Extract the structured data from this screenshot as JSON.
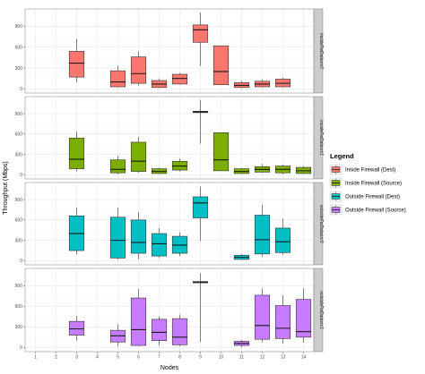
{
  "chart_data": {
    "type": "box",
    "xlabel": "Nodes",
    "ylabel": "Throughput (Mbps)",
    "x_categories": [
      "1",
      "2",
      "3",
      "4",
      "5",
      "6",
      "7",
      "8",
      "9",
      "10",
      "11",
      "12",
      "13",
      "14"
    ],
    "y_ticks": [
      0,
      300,
      600,
      900
    ],
    "ylim": [
      -60,
      1150
    ],
    "grid": true,
    "legend": {
      "title": "Legend",
      "position": "right",
      "entries": [
        {
          "label": "Inside Firewall (Dest)",
          "color": "#F8766D"
        },
        {
          "label": "Inside Firewall (Source)",
          "color": "#7CAE00"
        },
        {
          "label": "Outside Firewall (Dest)",
          "color": "#00BFC4"
        },
        {
          "label": "Outside Firewall (Source)",
          "color": "#C77CFF"
        }
      ]
    },
    "panels": [
      {
        "series": "Inside Firewall (Dest)",
        "strip_label": "insideFwDatasrc0",
        "color": "#F8766D",
        "boxes": [
          {
            "x": 3,
            "min": 90,
            "q1": 170,
            "median": 370,
            "q3": 540,
            "max": 720
          },
          {
            "x": 5,
            "min": 20,
            "q1": 30,
            "median": 100,
            "q3": 260,
            "max": 330
          },
          {
            "x": 6,
            "min": 50,
            "q1": 80,
            "median": 220,
            "q3": 460,
            "max": 540
          },
          {
            "x": 7,
            "min": 10,
            "q1": 20,
            "median": 70,
            "q3": 120,
            "max": 150
          },
          {
            "x": 8,
            "min": 60,
            "q1": 70,
            "median": 150,
            "q3": 210,
            "max": 230
          },
          {
            "x": 9,
            "min": 330,
            "q1": 670,
            "median": 850,
            "q3": 920,
            "max": 1100
          },
          {
            "x": 10,
            "min": 60,
            "q1": 60,
            "median": 250,
            "q3": 620,
            "max": 620
          },
          {
            "x": 11,
            "min": 10,
            "q1": 20,
            "median": 50,
            "q3": 90,
            "max": 120
          },
          {
            "x": 12,
            "min": 20,
            "q1": 30,
            "median": 70,
            "q3": 110,
            "max": 140
          },
          {
            "x": 13,
            "min": 20,
            "q1": 30,
            "median": 80,
            "q3": 140,
            "max": 160
          }
        ]
      },
      {
        "series": "Inside Firewall (Source)",
        "strip_label": "insideFwDatasrc1",
        "color": "#7CAE00",
        "boxes": [
          {
            "x": 3,
            "min": 50,
            "q1": 90,
            "median": 230,
            "q3": 540,
            "max": 640
          },
          {
            "x": 5,
            "min": 10,
            "q1": 30,
            "median": 80,
            "q3": 220,
            "max": 280
          },
          {
            "x": 6,
            "min": 30,
            "q1": 50,
            "median": 200,
            "q3": 480,
            "max": 560
          },
          {
            "x": 7,
            "min": 10,
            "q1": 20,
            "median": 50,
            "q3": 90,
            "max": 110
          },
          {
            "x": 8,
            "min": 50,
            "q1": 70,
            "median": 130,
            "q3": 200,
            "max": 240
          },
          {
            "x": 9,
            "min": 460,
            "q1": 915,
            "median": 925,
            "q3": 935,
            "max": 1100
          },
          {
            "x": 10,
            "min": 60,
            "q1": 60,
            "median": 220,
            "q3": 620,
            "max": 620
          },
          {
            "x": 11,
            "min": 10,
            "q1": 20,
            "median": 50,
            "q3": 90,
            "max": 100
          },
          {
            "x": 12,
            "min": 30,
            "q1": 40,
            "median": 80,
            "q3": 120,
            "max": 160
          },
          {
            "x": 13,
            "min": 10,
            "q1": 30,
            "median": 80,
            "q3": 130,
            "max": 150
          },
          {
            "x": 14,
            "min": 10,
            "q1": 20,
            "median": 60,
            "q3": 110,
            "max": 130
          }
        ]
      },
      {
        "series": "Outside Firewall (Dest)",
        "strip_label": "outsideFwDatasrc0",
        "color": "#00BFC4",
        "boxes": [
          {
            "x": 3,
            "min": 90,
            "q1": 150,
            "median": 400,
            "q3": 660,
            "max": 780
          },
          {
            "x": 5,
            "min": 20,
            "q1": 40,
            "median": 300,
            "q3": 640,
            "max": 780
          },
          {
            "x": 6,
            "min": 20,
            "q1": 110,
            "median": 270,
            "q3": 600,
            "max": 720
          },
          {
            "x": 7,
            "min": 40,
            "q1": 70,
            "median": 250,
            "q3": 400,
            "max": 480
          },
          {
            "x": 8,
            "min": 70,
            "q1": 110,
            "median": 230,
            "q3": 360,
            "max": 420
          },
          {
            "x": 9,
            "min": 290,
            "q1": 630,
            "median": 850,
            "q3": 940,
            "max": 1090
          },
          {
            "x": 11,
            "min": 10,
            "q1": 20,
            "median": 50,
            "q3": 80,
            "max": 100
          },
          {
            "x": 12,
            "min": 60,
            "q1": 100,
            "median": 310,
            "q3": 670,
            "max": 820
          },
          {
            "x": 13,
            "min": 90,
            "q1": 120,
            "median": 280,
            "q3": 480,
            "max": 620
          }
        ]
      },
      {
        "series": "Outside Firewall (Source)",
        "strip_label": "outsideFwDatasrc1",
        "color": "#C77CFF",
        "boxes": [
          {
            "x": 3,
            "min": 100,
            "q1": 180,
            "median": 270,
            "q3": 380,
            "max": 460
          },
          {
            "x": 5,
            "min": 20,
            "q1": 80,
            "median": 170,
            "q3": 250,
            "max": 340
          },
          {
            "x": 6,
            "min": 20,
            "q1": 30,
            "median": 260,
            "q3": 720,
            "max": 850
          },
          {
            "x": 7,
            "min": 30,
            "q1": 100,
            "median": 220,
            "q3": 410,
            "max": 450
          },
          {
            "x": 8,
            "min": 20,
            "q1": 40,
            "median": 150,
            "q3": 420,
            "max": 480
          },
          {
            "x": 9,
            "min": 80,
            "q1": 940,
            "median": 950,
            "q3": 960,
            "max": 1080
          },
          {
            "x": 11,
            "min": 0,
            "q1": 30,
            "median": 60,
            "q3": 90,
            "max": 110
          },
          {
            "x": 12,
            "min": 80,
            "q1": 120,
            "median": 320,
            "q3": 760,
            "max": 860
          },
          {
            "x": 13,
            "min": 60,
            "q1": 130,
            "median": 280,
            "q3": 610,
            "max": 760
          },
          {
            "x": 14,
            "min": 70,
            "q1": 150,
            "median": 230,
            "q3": 700,
            "max": 860
          }
        ]
      }
    ]
  }
}
